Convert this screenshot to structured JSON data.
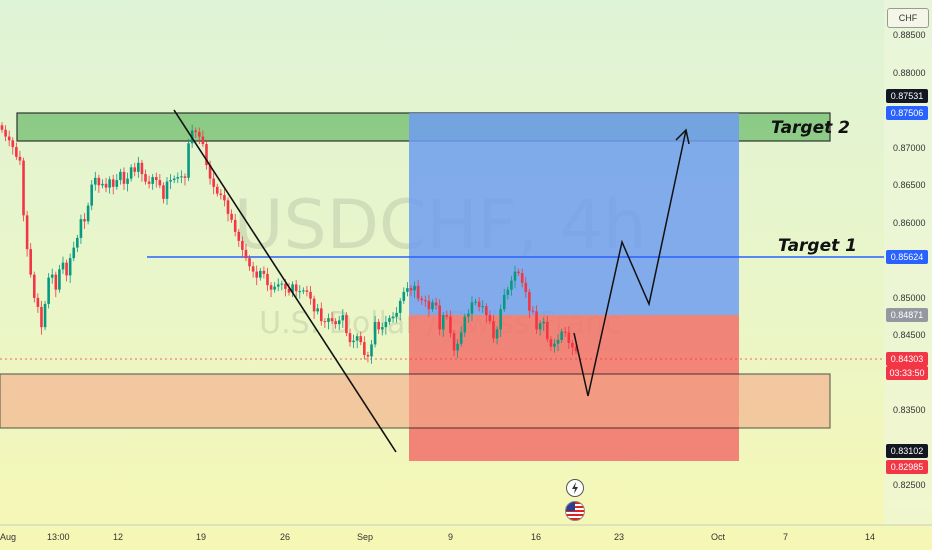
{
  "currency": "CHF",
  "watermark": {
    "symbol": "USDCHF, 4h",
    "name": "U.S. Dollar / Swiss Franc"
  },
  "colors": {
    "up": "#089981",
    "down": "#f23645",
    "target_zone": "#7ec47a",
    "support_zone": "#f4a98a",
    "profit_zone": "#6e9ef0",
    "loss_zone": "#f2706b",
    "target1_line": "#2962ff"
  },
  "annotations": {
    "target1": "Target 1",
    "target2": "Target 2"
  },
  "price_tags": [
    {
      "text": "0.87531",
      "bg": "#131722"
    },
    {
      "text": "0.87506",
      "bg": "#2962ff"
    },
    {
      "text": "0.85624",
      "bg": "#2962ff"
    },
    {
      "text": "0.84871",
      "bg": "#9598a1"
    },
    {
      "text": "0.84303",
      "bg": "#f23645"
    },
    {
      "text": "03:33:50",
      "bg": "#f23645"
    },
    {
      "text": "0.83102",
      "bg": "#131722"
    },
    {
      "text": "0.82985",
      "bg": "#f23645"
    }
  ],
  "icons": [
    "lightning-icon",
    "us-flag-icon"
  ],
  "chart_data": {
    "type": "candlestick",
    "timeframe": "4h",
    "y_ticks": [
      "0.88500",
      "0.88000",
      "0.87500",
      "0.87000",
      "0.86500",
      "0.86000",
      "0.85500",
      "0.85000",
      "0.84500",
      "0.84000",
      "0.83500",
      "0.83000",
      "0.82500"
    ],
    "x_ticks": [
      "Aug",
      "13:00",
      "12",
      "19",
      "26",
      "Sep",
      "9",
      "16",
      "23",
      "Oct",
      "7",
      "14"
    ],
    "ylim": [
      0.8225,
      0.8878
    ],
    "closes": [
      0.8725,
      0.8716,
      0.8711,
      0.8702,
      0.8689,
      0.8684,
      0.8611,
      0.8566,
      0.8532,
      0.8501,
      0.8489,
      0.8462,
      0.8493,
      0.8528,
      0.8532,
      0.8512,
      0.8539,
      0.8548,
      0.8531,
      0.8554,
      0.8568,
      0.8581,
      0.8606,
      0.8603,
      0.8624,
      0.8652,
      0.8661,
      0.8651,
      0.8653,
      0.8648,
      0.8659,
      0.8649,
      0.8658,
      0.8669,
      0.8653,
      0.866,
      0.8675,
      0.8669,
      0.8681,
      0.8666,
      0.8656,
      0.8653,
      0.8662,
      0.8658,
      0.8651,
      0.8633,
      0.8656,
      0.8658,
      0.866,
      0.8662,
      0.8663,
      0.8661,
      0.8707,
      0.8724,
      0.8722,
      0.8716,
      0.8706,
      0.8678,
      0.866,
      0.8649,
      0.864,
      0.8638,
      0.8631,
      0.8613,
      0.8605,
      0.8589,
      0.8577,
      0.8565,
      0.8554,
      0.8543,
      0.8536,
      0.8528,
      0.8537,
      0.8533,
      0.8518,
      0.8512,
      0.8516,
      0.8519,
      0.852,
      0.8513,
      0.8508,
      0.8519,
      0.851,
      0.851,
      0.8511,
      0.8509,
      0.85,
      0.8483,
      0.8487,
      0.847,
      0.8469,
      0.8474,
      0.847,
      0.8466,
      0.8471,
      0.8478,
      0.8454,
      0.8442,
      0.8444,
      0.845,
      0.8442,
      0.8425,
      0.8423,
      0.8439,
      0.8469,
      0.8459,
      0.8462,
      0.8469,
      0.8474,
      0.8476,
      0.8481,
      0.8497,
      0.8509,
      0.8514,
      0.8511,
      0.8517,
      0.85,
      0.8498,
      0.8497,
      0.8486,
      0.8495,
      0.8491,
      0.8459,
      0.8478,
      0.8476,
      0.8454,
      0.8431,
      0.844,
      0.8455,
      0.8476,
      0.848,
      0.8495,
      0.8496,
      0.8489,
      0.849,
      0.8478,
      0.847,
      0.8447,
      0.8459,
      0.8486,
      0.8505,
      0.8512,
      0.8524,
      0.8536,
      0.8534,
      0.8521,
      0.8509,
      0.8484,
      0.8483,
      0.8459,
      0.8467,
      0.8469,
      0.8446,
      0.8436,
      0.844,
      0.8445,
      0.8456,
      0.8455,
      0.8441,
      0.8435,
      0.843
    ],
    "xlabel": "",
    "ylabel": ""
  }
}
